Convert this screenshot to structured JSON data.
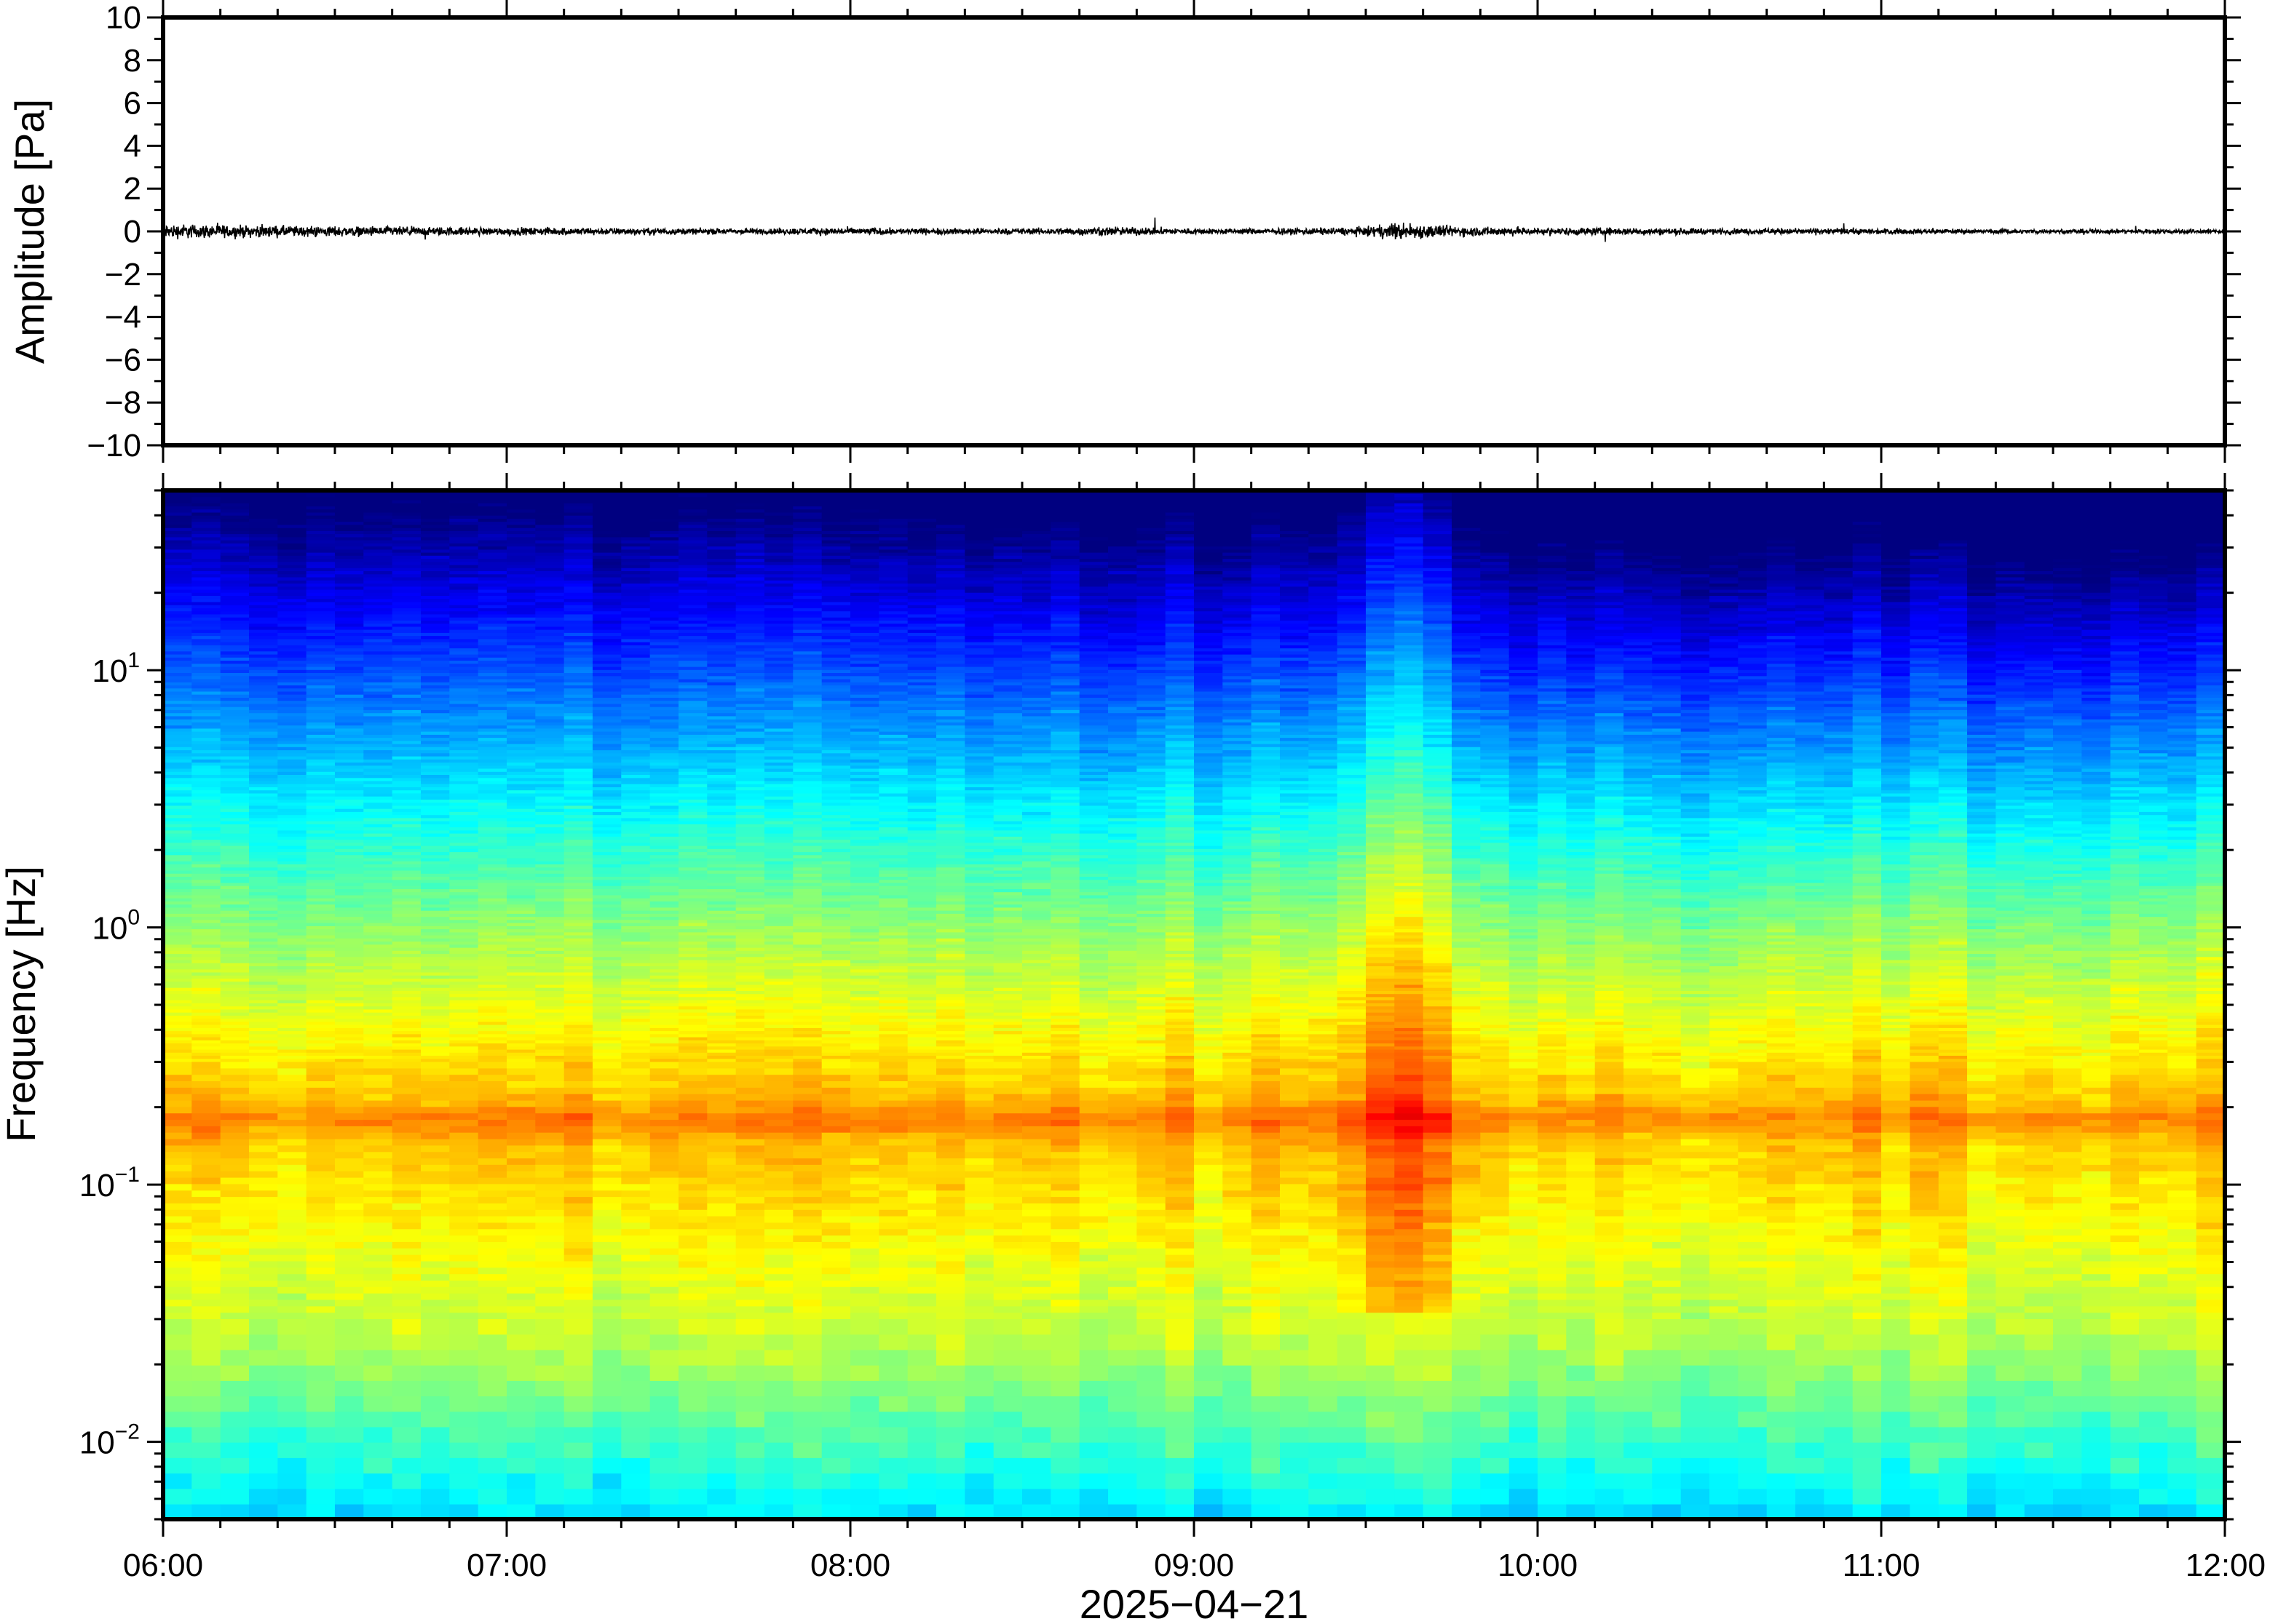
{
  "chart_data": [
    {
      "type": "line",
      "panel": "waveform",
      "ylabel": "Amplitude [Pa]",
      "ylim": [
        -10,
        10
      ],
      "yticks": [
        -10,
        -8,
        -6,
        -4,
        -2,
        0,
        2,
        4,
        6,
        8,
        10
      ],
      "ytick_labels": [
        "−10",
        "−8",
        "−6",
        "−4",
        "−2",
        "0",
        "2",
        "4",
        "6",
        "8",
        "10"
      ],
      "xlim": [
        "2025-04-21T06:00",
        "2025-04-21T12:00"
      ],
      "series": [
        {
          "color": "#000000",
          "envelope_x": [
            "06:00",
            "06:15",
            "06:30",
            "06:45",
            "07:00",
            "07:15",
            "07:30",
            "07:45",
            "08:00",
            "08:15",
            "08:30",
            "08:45",
            "09:00",
            "09:15",
            "09:30",
            "09:36",
            "09:45",
            "10:00",
            "10:15",
            "10:30",
            "10:45",
            "11:00",
            "11:15",
            "11:30",
            "11:45",
            "12:00"
          ],
          "envelope_amplitude": [
            0.5,
            0.4,
            0.35,
            0.3,
            0.25,
            0.25,
            0.2,
            0.2,
            0.25,
            0.2,
            0.2,
            0.3,
            0.2,
            0.2,
            0.3,
            0.6,
            0.35,
            0.25,
            0.25,
            0.2,
            0.2,
            0.2,
            0.15,
            0.15,
            0.15,
            0.15
          ]
        }
      ]
    },
    {
      "type": "heatmap",
      "panel": "spectrogram",
      "ylabel": "Frequency [Hz]",
      "yscale": "log",
      "ylim": [
        0.005,
        50
      ],
      "yticks": [
        {
          "base": "10",
          "exp": "−2",
          "value": 0.01
        },
        {
          "base": "10",
          "exp": "−1",
          "value": 0.1
        },
        {
          "base": "10",
          "exp": "0",
          "value": 1
        },
        {
          "base": "10",
          "exp": "1",
          "value": 10
        }
      ],
      "xlabel": "2025−04−21",
      "xticks": [
        "06:00",
        "07:00",
        "08:00",
        "09:00",
        "10:00",
        "11:00",
        "12:00"
      ],
      "xlim": [
        "2025-04-21T06:00",
        "2025-04-21T12:00"
      ],
      "colormap": "jet",
      "colors": {
        "low": "#00007f",
        "mid": "#7fff7f",
        "high": "#ff7f00"
      },
      "energetic_band_hz": [
        0.05,
        0.25
      ],
      "microseism_peak_hz": 0.18,
      "event_time": "09:36"
    }
  ]
}
